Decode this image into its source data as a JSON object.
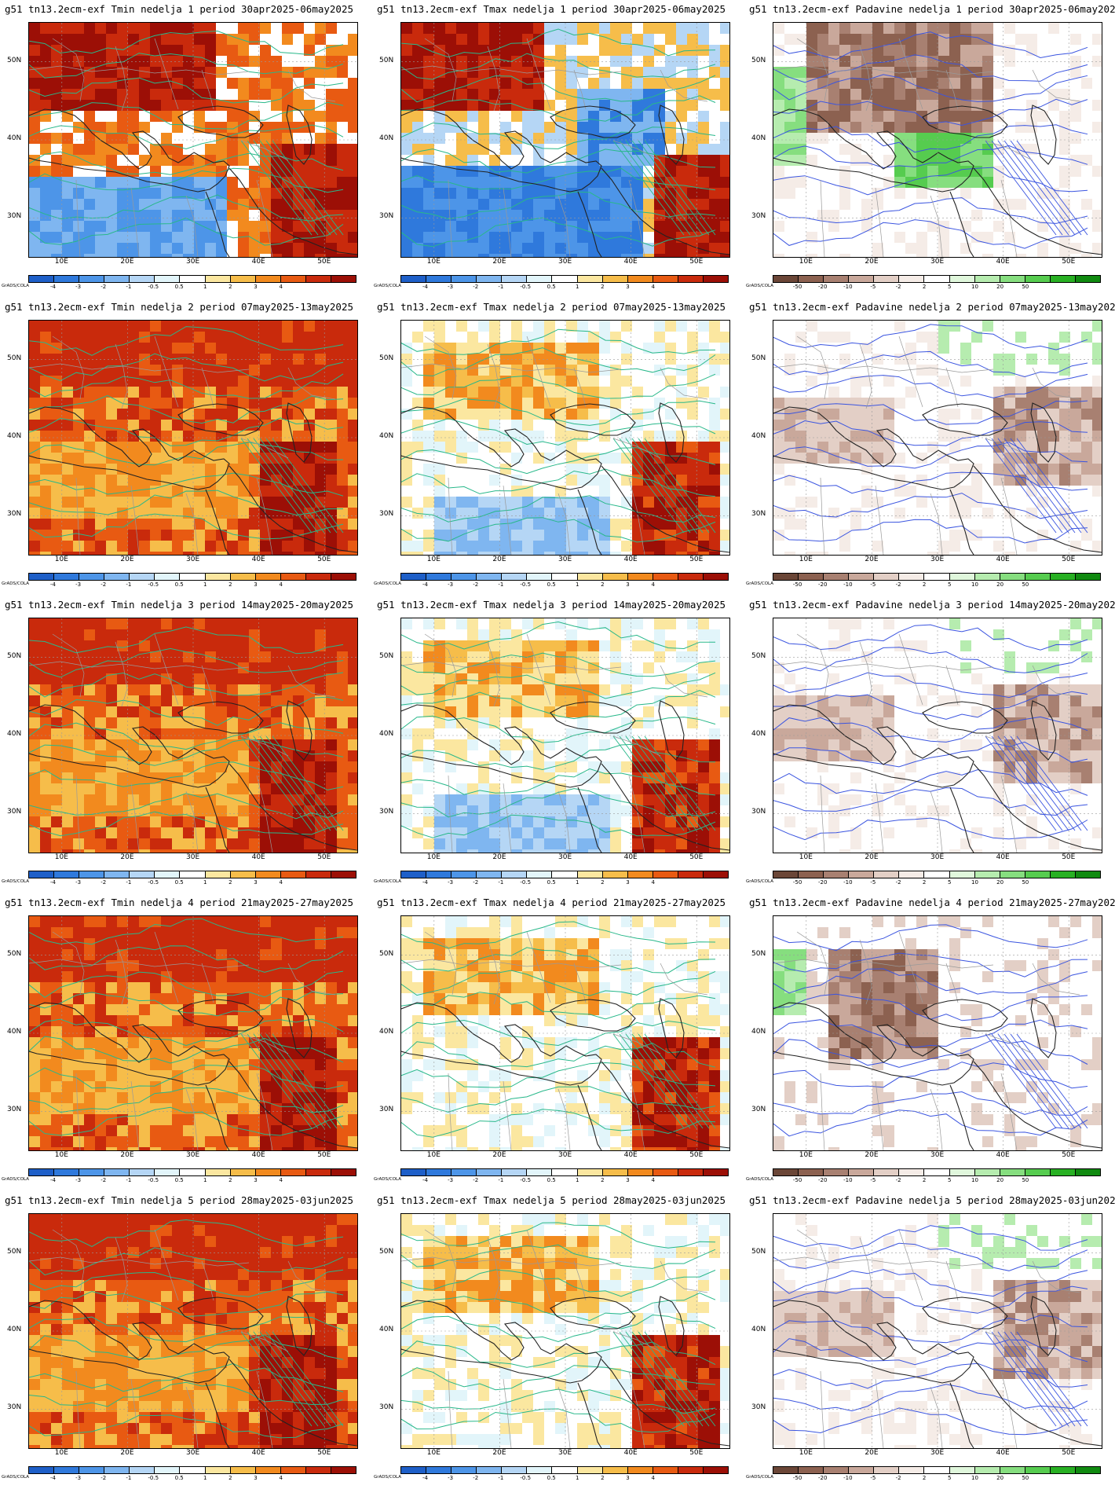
{
  "title_prefix": "g51 tn13.2ecm-exf",
  "variables": [
    "Tmin",
    "Tmax",
    "Padavine"
  ],
  "weeks": [
    {
      "label": "nedelja 1 period 30apr2025-06may2025"
    },
    {
      "label": "nedelja 2 period 07may2025-13may2025"
    },
    {
      "label": "nedelja 3 period 14may2025-20may2025"
    },
    {
      "label": "nedelja 4 period 21may2025-27may2025"
    },
    {
      "label": "nedelja 5 period 28may2025-03jun2025"
    }
  ],
  "panel_titles": [
    [
      "g51 tn13.2ecm-exf Tmin nedelja 1 period 30apr2025-06may2025",
      "g51 tn13.2ecm-exf Tmax nedelja 1 period 30apr2025-06may2025",
      "g51 tn13.2ecm-exf Padavine nedelja 1 period 30apr2025-06may2025"
    ],
    [
      "g51 tn13.2ecm-exf Tmin nedelja 2 period 07may2025-13may2025",
      "g51 tn13.2ecm-exf Tmax nedelja 2 period 07may2025-13may2025",
      "g51 tn13.2ecm-exf Padavine nedelja 2 period 07may2025-13may2025"
    ],
    [
      "g51 tn13.2ecm-exf Tmin nedelja 3 period 14may2025-20may2025",
      "g51 tn13.2ecm-exf Tmax nedelja 3 period 14may2025-20may2025",
      "g51 tn13.2ecm-exf Padavine nedelja 3 period 14may2025-20may2025"
    ],
    [
      "g51 tn13.2ecm-exf Tmin nedelja 4 period 21may2025-27may2025",
      "g51 tn13.2ecm-exf Tmax nedelja 4 period 21may2025-27may2025",
      "g51 tn13.2ecm-exf Padavine nedelja 4 period 21may2025-27may2025"
    ],
    [
      "g51 tn13.2ecm-exf Tmin nedelja 5 period 28may2025-03jun2025",
      "g51 tn13.2ecm-exf Tmax nedelja 5 period 28may2025-03jun2025",
      "g51 tn13.2ecm-exf Padavine nedelja 5 period 28may2025-03jun2025"
    ]
  ],
  "lat_labels": [
    "50N",
    "40N",
    "30N"
  ],
  "lon_labels": [
    "10E",
    "20E",
    "30E",
    "40E",
    "50E"
  ],
  "credit": "GrADS/COLA",
  "temp_scale": {
    "labels": [
      "-4",
      "-3",
      "-2",
      "-1",
      "-0.5",
      "0.5",
      "1",
      "2",
      "3",
      "4"
    ],
    "colors": [
      "#1e5fc8",
      "#2f79dc",
      "#4d95e8",
      "#7fb6f0",
      "#b5d6f5",
      "#e2f5fa",
      "#ffffff",
      "#fbe7a0",
      "#f6bd4a",
      "#f28a1e",
      "#e85a12",
      "#c92a0c",
      "#9c0f06"
    ]
  },
  "precip_scale": {
    "labels": [
      "-50",
      "-20",
      "-10",
      "-5",
      "-2",
      "2",
      "5",
      "10",
      "20",
      "50"
    ],
    "colors": [
      "#6b4637",
      "#8c6150",
      "#a88071",
      "#c9a89b",
      "#e3cfc6",
      "#f5ece7",
      "#ffffff",
      "#e0f7dc",
      "#b6ecaf",
      "#86de7f",
      "#56cc4f",
      "#28b023",
      "#108a10"
    ]
  },
  "contour_colors": {
    "temperature": "#28b88a",
    "precipitation": "#3b55e0",
    "coast": "#222222",
    "borders": "#999999"
  },
  "anomaly_levels": {
    "Tmin": [
      "+3",
      "+2.5",
      "+2.5",
      "+2",
      "+2"
    ],
    "Tmax": [
      "-2",
      "+1",
      "+0.5",
      "+0.5",
      "+0.5"
    ],
    "Padavine": [
      "-10",
      "-5",
      "-5",
      "-10",
      "-2"
    ]
  }
}
